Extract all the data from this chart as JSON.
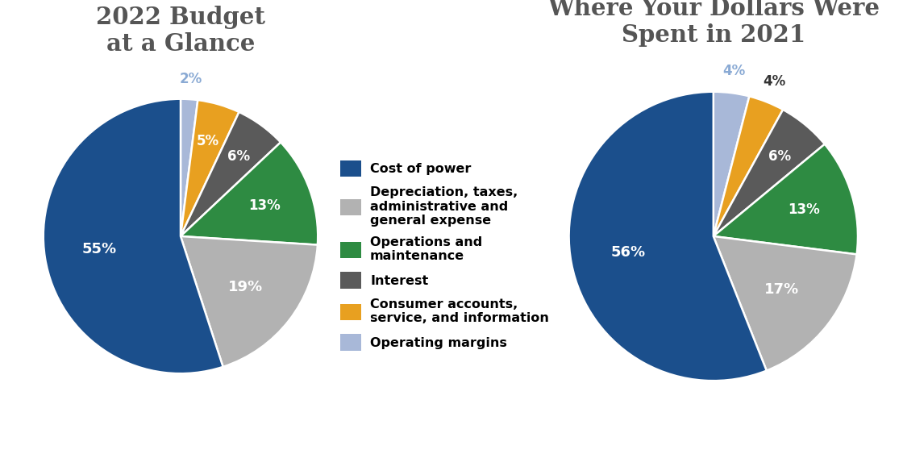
{
  "title1": "2022 Budget\nat a Glance",
  "title2": "Where Your Dollars Were\nSpent in 2021",
  "title_color": "#555555",
  "title_fontsize": 21,
  "categories": [
    "Cost of power",
    "Depreciation, taxes,\nadministrative and\ngeneral expense",
    "Operations and\nmaintenance",
    "Interest",
    "Consumer accounts,\nservice, and information",
    "Operating margins"
  ],
  "colors": [
    "#1b4f8c",
    "#b2b2b2",
    "#2e8b42",
    "#5a5a5a",
    "#e8a020",
    "#a8b8d8"
  ],
  "pie1_values": [
    55,
    19,
    13,
    6,
    5,
    2
  ],
  "pie1_labels": [
    "55%",
    "19%",
    "13%",
    "6%",
    "5%",
    "2%"
  ],
  "pie2_values": [
    56,
    17,
    13,
    6,
    4,
    4
  ],
  "pie2_labels": [
    "56%",
    "17%",
    "13%",
    "6%",
    "4%",
    "4%"
  ],
  "label_fontsize": 12,
  "legend_fontsize": 11.5,
  "background_color": "#ffffff",
  "label_color_white": "#ffffff",
  "label_color_blue_light": "#8aaad4",
  "label_color_dark": "#333333"
}
